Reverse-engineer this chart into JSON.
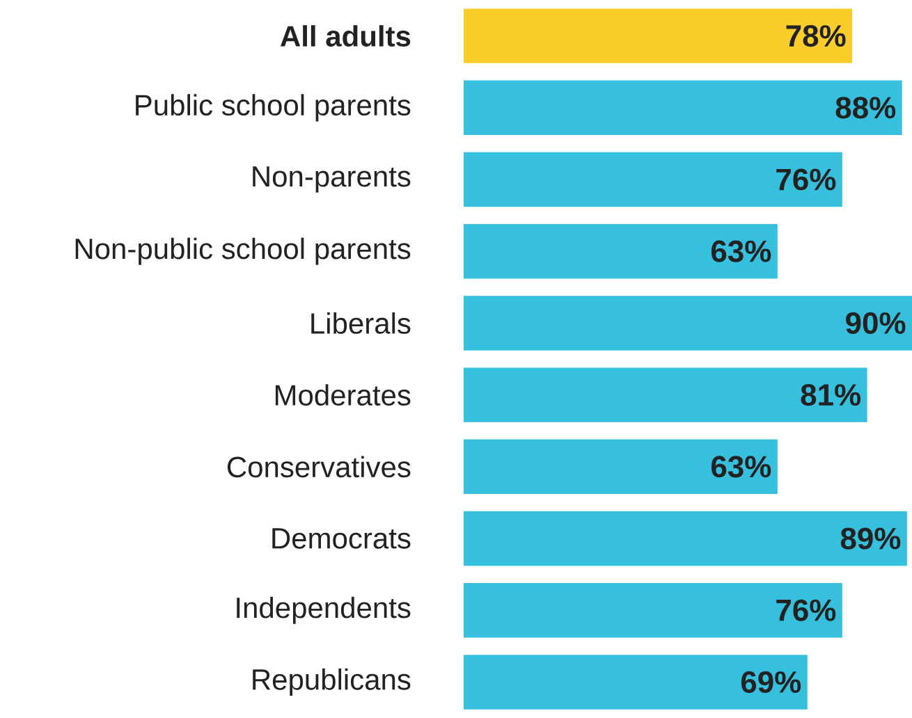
{
  "chart_data": {
    "type": "bar",
    "orientation": "horizontal",
    "categories": [
      "All adults",
      "Public school parents",
      "Non-parents",
      "Non-public school parents",
      "Liberals",
      "Moderates",
      "Conservatives",
      "Democrats",
      "Independents",
      "Republicans"
    ],
    "values": [
      78,
      88,
      76,
      63,
      90,
      81,
      63,
      89,
      76,
      69
    ],
    "value_labels": [
      "78%",
      "88%",
      "76%",
      "63%",
      "90%",
      "81%",
      "63%",
      "89%",
      "76%",
      "69%"
    ],
    "colors": [
      "#fbcd2b",
      "#37c0de",
      "#37c0de",
      "#37c0de",
      "#37c0de",
      "#37c0de",
      "#37c0de",
      "#37c0de",
      "#37c0de",
      "#37c0de"
    ],
    "tick_labels": "y"
  }
}
